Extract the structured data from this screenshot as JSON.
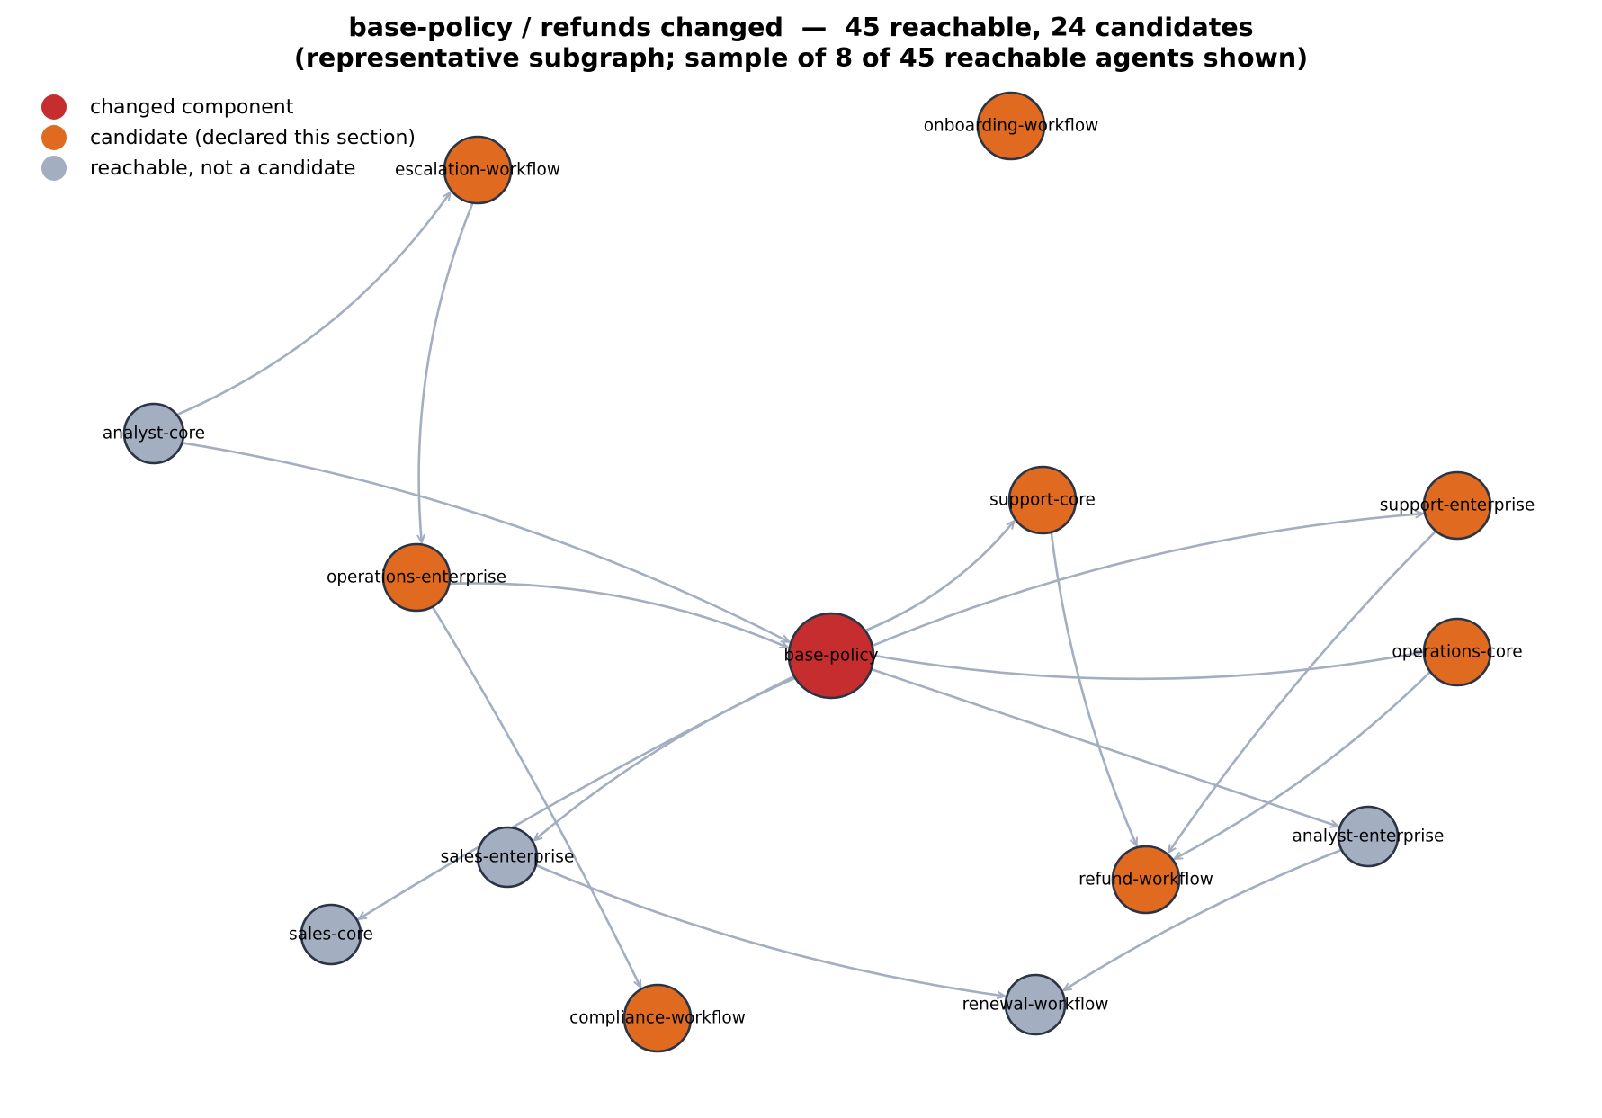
{
  "title": {
    "line1": "base-policy / refunds changed  —  45 reachable, 24 candidates",
    "line2": "(representative subgraph; sample of 8 of 45 reachable agents shown)"
  },
  "colors": {
    "changed": "#c62d2f",
    "candidate": "#e06a1f",
    "reachable": "#a3aec0",
    "edge": "#a3aec0",
    "node_stroke": "#2b3445"
  },
  "legend": [
    {
      "label": "changed component",
      "color": "#c62d2f"
    },
    {
      "label": "candidate (declared this section)",
      "color": "#e06a1f"
    },
    {
      "label": "reachable, not a candidate",
      "color": "#a3aec0"
    }
  ],
  "nodes": [
    {
      "id": "base-policy",
      "label": "base-policy",
      "kind": "changed"
    },
    {
      "id": "onboarding-workflow",
      "label": "onboarding-workflow",
      "kind": "candidate"
    },
    {
      "id": "escalation-workflow",
      "label": "escalation-workflow",
      "kind": "candidate"
    },
    {
      "id": "analyst-core",
      "label": "analyst-core",
      "kind": "reachable"
    },
    {
      "id": "support-core",
      "label": "support-core",
      "kind": "candidate"
    },
    {
      "id": "support-enterprise",
      "label": "support-enterprise",
      "kind": "candidate"
    },
    {
      "id": "operations-enterprise",
      "label": "operations-enterprise",
      "kind": "candidate"
    },
    {
      "id": "operations-core",
      "label": "operations-core",
      "kind": "candidate"
    },
    {
      "id": "analyst-enterprise",
      "label": "analyst-enterprise",
      "kind": "reachable"
    },
    {
      "id": "sales-enterprise",
      "label": "sales-enterprise",
      "kind": "reachable"
    },
    {
      "id": "refund-workflow",
      "label": "refund-workflow",
      "kind": "candidate"
    },
    {
      "id": "sales-core",
      "label": "sales-core",
      "kind": "reachable"
    },
    {
      "id": "compliance-workflow",
      "label": "compliance-workflow",
      "kind": "candidate"
    },
    {
      "id": "renewal-workflow",
      "label": "renewal-workflow",
      "kind": "reachable"
    }
  ],
  "edges": [
    {
      "source": "analyst-core",
      "target": "escalation-workflow"
    },
    {
      "source": "escalation-workflow",
      "target": "operations-enterprise"
    },
    {
      "source": "analyst-core",
      "target": "base-policy"
    },
    {
      "source": "operations-enterprise",
      "target": "base-policy"
    },
    {
      "source": "base-policy",
      "target": "support-core"
    },
    {
      "source": "base-policy",
      "target": "support-enterprise"
    },
    {
      "source": "base-policy",
      "target": "operations-core"
    },
    {
      "source": "base-policy",
      "target": "analyst-enterprise"
    },
    {
      "source": "base-policy",
      "target": "sales-enterprise"
    },
    {
      "source": "base-policy",
      "target": "sales-core"
    },
    {
      "source": "operations-enterprise",
      "target": "compliance-workflow"
    },
    {
      "source": "support-core",
      "target": "refund-workflow"
    },
    {
      "source": "support-enterprise",
      "target": "refund-workflow"
    },
    {
      "source": "operations-core",
      "target": "refund-workflow"
    },
    {
      "source": "sales-enterprise",
      "target": "renewal-workflow"
    },
    {
      "source": "analyst-enterprise",
      "target": "renewal-workflow"
    }
  ]
}
